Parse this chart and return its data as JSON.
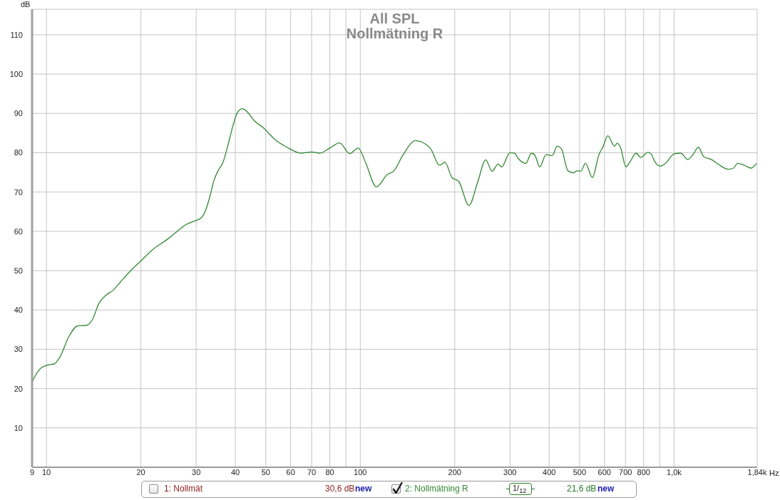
{
  "chart_data": {
    "type": "line",
    "title": "All SPL",
    "subtitle": "Nollmätning R",
    "xlabel": "Hz",
    "ylabel": "dB",
    "log": "x",
    "grid": true,
    "legend": "bottom",
    "line_style": "solid",
    "xlim": [
      9,
      1840
    ],
    "ylim": [
      0,
      116.5
    ],
    "xticks": [
      9,
      10,
      20,
      30,
      40,
      50,
      60,
      70,
      80,
      {
        "value": 90,
        "label": null
      },
      100,
      200,
      300,
      400,
      500,
      600,
      700,
      800,
      {
        "value": 900,
        "label": null
      },
      {
        "value": 1000,
        "label": "1,0k"
      },
      {
        "value": 1840,
        "label": "1,84k"
      }
    ],
    "yticks": [
      10,
      20,
      30,
      40,
      50,
      60,
      70,
      80,
      90,
      100,
      110
    ],
    "annotations": [
      "1: Nollmät",
      "30,6 dB",
      "new",
      "1/$_{12}$",
      "21,6 dB",
      "new"
    ],
    "x": [
      9.0,
      9.5,
      10,
      10.6,
      11.0,
      11.8,
      12.6,
      13.4,
      14.0,
      14.7,
      15.5,
      16.3,
      17.2,
      18.4,
      20,
      21.9,
      24.3,
      26.0,
      27.8,
      30,
      31.1,
      32.2,
      33.0,
      34.2,
      35.4,
      36.5,
      37.9,
      39.3,
      40.6,
      42.1,
      43.5,
      45.9,
      49.2,
      53.6,
      58.4,
      64.8,
      70,
      74.3,
      79.6,
      86,
      92.5,
      98.5,
      104,
      112.5,
      121.8,
      128,
      137,
      150,
      167,
      179,
      186,
      196,
      206,
      222,
      237,
      251,
      263,
      275,
      282,
      300,
      310,
      319,
      337,
      351,
      361,
      373,
      391,
      409,
      424,
      438,
      459,
      479,
      489,
      504,
      522,
      549,
      576,
      594,
      615,
      646,
      659,
      676,
      702,
      725,
      757,
      783,
      825,
      845,
      870,
      902,
      933,
      1000,
      1050,
      1104,
      1148,
      1195,
      1243,
      1320,
      1388,
      1487,
      1547,
      1594,
      1675,
      1760,
      1831
    ],
    "series": [
      {
        "name": "2: Nollmätning R",
        "color": "#338833",
        "values": [
          21.7,
          24.9,
          25.9,
          26.3,
          27.8,
          33.3,
          36.0,
          36.1,
          37.5,
          41.7,
          43.8,
          45.0,
          47.1,
          49.7,
          52.5,
          55.5,
          58.0,
          59.9,
          61.7,
          62.8,
          63.4,
          65.5,
          68.2,
          73.0,
          75.7,
          77.5,
          82.0,
          86.9,
          90.2,
          91.2,
          90.5,
          88.2,
          86.3,
          83.3,
          81.4,
          79.9,
          80.2,
          79.9,
          81.1,
          82.5,
          79.8,
          81.2,
          77.5,
          71.3,
          74.4,
          75.4,
          79.5,
          83.1,
          81.2,
          76.8,
          77.6,
          73.7,
          72.7,
          66.6,
          72.7,
          78.2,
          75.3,
          77.1,
          76.4,
          80.0,
          79.9,
          78.5,
          77.3,
          79.9,
          79.2,
          76.4,
          79.5,
          79.3,
          81.7,
          80.9,
          75.4,
          74.9,
          75.4,
          75.3,
          77.3,
          73.7,
          79.5,
          81.6,
          84.3,
          81.7,
          82.4,
          81.2,
          76.4,
          77.8,
          79.9,
          78.8,
          80.1,
          79.7,
          77.6,
          76.6,
          77.1,
          79.7,
          79.9,
          78.3,
          79.5,
          81.4,
          79.0,
          78.2,
          77.0,
          75.8,
          76.1,
          77.3,
          76.8,
          76.1,
          77.3
        ]
      }
    ]
  }
}
